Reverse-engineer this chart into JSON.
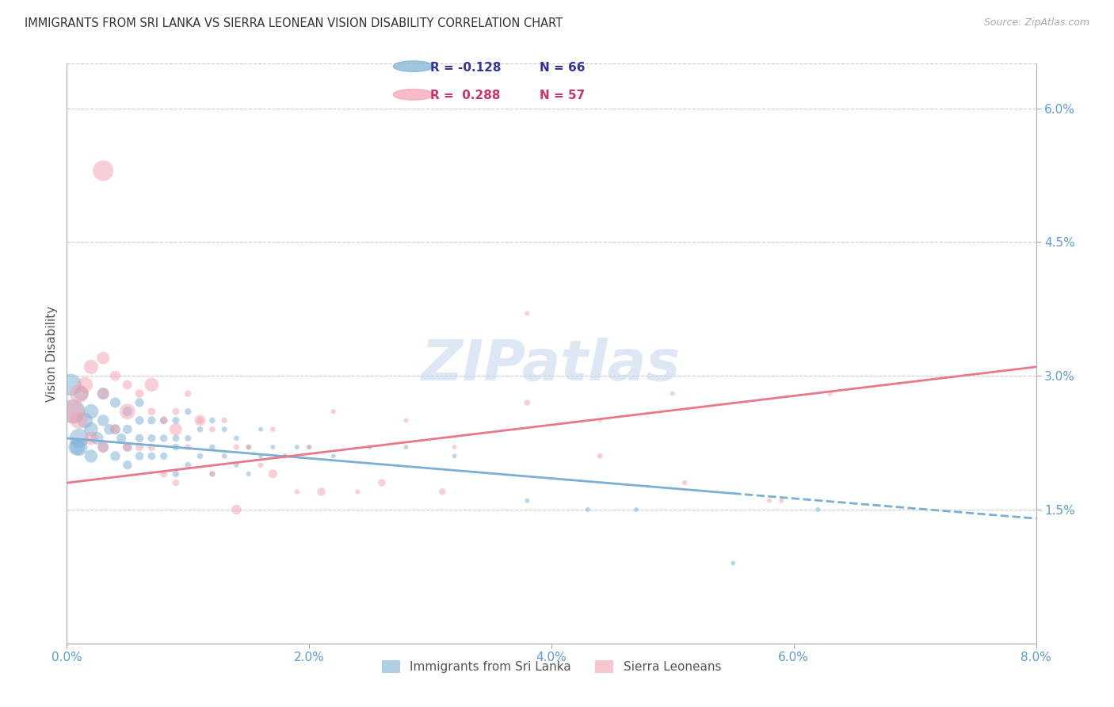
{
  "title": "IMMIGRANTS FROM SRI LANKA VS SIERRA LEONEAN VISION DISABILITY CORRELATION CHART",
  "source": "Source: ZipAtlas.com",
  "ylabel": "Vision Disability",
  "x_min": 0.0,
  "x_max": 0.08,
  "y_min": 0.0,
  "y_max": 0.065,
  "x_ticks": [
    0.0,
    0.02,
    0.04,
    0.06,
    0.08
  ],
  "x_tick_labels": [
    "0.0%",
    "2.0%",
    "4.0%",
    "6.0%",
    "8.0%"
  ],
  "y_ticks_right": [
    0.015,
    0.03,
    0.045,
    0.06
  ],
  "y_tick_labels_right": [
    "1.5%",
    "3.0%",
    "4.5%",
    "6.0%"
  ],
  "series1_color": "#7bafd4",
  "series2_color": "#f4a0b0",
  "series1_label": "Immigrants from Sri Lanka",
  "series2_label": "Sierra Leoneans",
  "series1_R": -0.128,
  "series1_N": 66,
  "series2_R": 0.288,
  "series2_N": 57,
  "watermark": "ZIPatlas",
  "background_color": "#ffffff",
  "grid_color": "#cccccc",
  "axis_color": "#5b9bd5",
  "sl_line_start_y": 0.023,
  "sl_line_end_y": 0.014,
  "sl_line_solid_end_x": 0.055,
  "sle_line_start_y": 0.018,
  "sle_line_end_y": 0.031,
  "sri_lanka_x": [
    0.0005,
    0.001,
    0.001,
    0.0015,
    0.002,
    0.002,
    0.002,
    0.0025,
    0.003,
    0.003,
    0.003,
    0.0035,
    0.004,
    0.004,
    0.004,
    0.0045,
    0.005,
    0.005,
    0.005,
    0.005,
    0.006,
    0.006,
    0.006,
    0.006,
    0.007,
    0.007,
    0.007,
    0.008,
    0.008,
    0.008,
    0.009,
    0.009,
    0.009,
    0.009,
    0.01,
    0.01,
    0.01,
    0.011,
    0.011,
    0.012,
    0.012,
    0.012,
    0.013,
    0.013,
    0.014,
    0.014,
    0.015,
    0.015,
    0.016,
    0.016,
    0.017,
    0.018,
    0.019,
    0.02,
    0.022,
    0.025,
    0.028,
    0.032,
    0.038,
    0.043,
    0.047,
    0.055,
    0.062,
    0.0003,
    0.0008,
    0.0012
  ],
  "sri_lanka_y": [
    0.026,
    0.023,
    0.022,
    0.025,
    0.026,
    0.024,
    0.021,
    0.023,
    0.028,
    0.025,
    0.022,
    0.024,
    0.027,
    0.024,
    0.021,
    0.023,
    0.026,
    0.024,
    0.022,
    0.02,
    0.027,
    0.025,
    0.023,
    0.021,
    0.025,
    0.023,
    0.021,
    0.025,
    0.023,
    0.021,
    0.025,
    0.023,
    0.022,
    0.019,
    0.026,
    0.023,
    0.02,
    0.024,
    0.021,
    0.025,
    0.022,
    0.019,
    0.024,
    0.021,
    0.023,
    0.02,
    0.022,
    0.019,
    0.024,
    0.021,
    0.022,
    0.021,
    0.022,
    0.022,
    0.021,
    0.022,
    0.022,
    0.021,
    0.016,
    0.015,
    0.015,
    0.009,
    0.015,
    0.029,
    0.022,
    0.028
  ],
  "sri_lanka_size": [
    500,
    300,
    250,
    200,
    180,
    160,
    140,
    130,
    120,
    110,
    100,
    95,
    90,
    85,
    80,
    78,
    75,
    72,
    70,
    68,
    65,
    62,
    60,
    58,
    55,
    52,
    50,
    48,
    46,
    44,
    42,
    40,
    38,
    36,
    35,
    33,
    32,
    30,
    29,
    28,
    27,
    26,
    25,
    24,
    23,
    22,
    21,
    20,
    19,
    18,
    18,
    18,
    18,
    18,
    18,
    18,
    18,
    18,
    18,
    18,
    18,
    18,
    18,
    400,
    220,
    180
  ],
  "sierra_leone_x": [
    0.0005,
    0.001,
    0.001,
    0.0015,
    0.002,
    0.002,
    0.003,
    0.003,
    0.003,
    0.004,
    0.004,
    0.005,
    0.005,
    0.006,
    0.006,
    0.007,
    0.007,
    0.008,
    0.008,
    0.009,
    0.009,
    0.01,
    0.01,
    0.011,
    0.012,
    0.012,
    0.013,
    0.014,
    0.015,
    0.016,
    0.017,
    0.018,
    0.019,
    0.02,
    0.022,
    0.024,
    0.028,
    0.032,
    0.038,
    0.044,
    0.05,
    0.058,
    0.063,
    0.003,
    0.005,
    0.007,
    0.009,
    0.011,
    0.014,
    0.017,
    0.021,
    0.026,
    0.031,
    0.038,
    0.044,
    0.051,
    0.059
  ],
  "sierra_leone_y": [
    0.026,
    0.028,
    0.025,
    0.029,
    0.031,
    0.023,
    0.032,
    0.028,
    0.022,
    0.03,
    0.024,
    0.029,
    0.022,
    0.028,
    0.022,
    0.026,
    0.022,
    0.025,
    0.019,
    0.026,
    0.018,
    0.028,
    0.022,
    0.025,
    0.024,
    0.019,
    0.025,
    0.022,
    0.022,
    0.02,
    0.024,
    0.021,
    0.017,
    0.022,
    0.026,
    0.017,
    0.025,
    0.022,
    0.037,
    0.025,
    0.028,
    0.016,
    0.028,
    0.053,
    0.026,
    0.029,
    0.024,
    0.025,
    0.015,
    0.019,
    0.017,
    0.018,
    0.017,
    0.027,
    0.021,
    0.018,
    0.016
  ],
  "sierra_leone_size": [
    400,
    280,
    240,
    200,
    170,
    150,
    130,
    110,
    95,
    88,
    80,
    72,
    65,
    60,
    55,
    50,
    48,
    45,
    42,
    40,
    38,
    36,
    34,
    32,
    30,
    28,
    27,
    26,
    25,
    24,
    23,
    22,
    21,
    20,
    19,
    18,
    18,
    18,
    18,
    18,
    18,
    18,
    18,
    350,
    200,
    160,
    130,
    100,
    80,
    65,
    55,
    45,
    38,
    30,
    25,
    22,
    20
  ]
}
